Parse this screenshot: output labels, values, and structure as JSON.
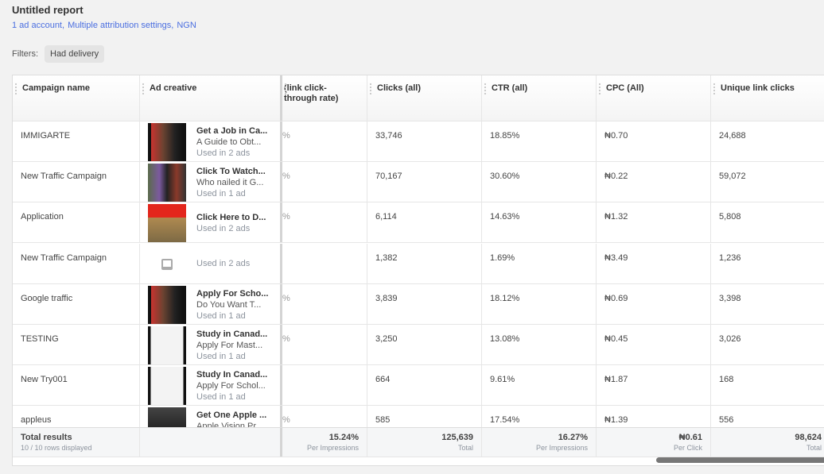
{
  "report": {
    "title": "Untitled report",
    "meta": [
      "1 ad account,",
      "Multiple attribution settings,",
      "NGN"
    ],
    "filters_label": "Filters:",
    "filter_chip": "Had delivery"
  },
  "columns": [
    "Campaign name",
    "Ad creative",
    "(link click-\nthrough rate)",
    "Clicks (all)",
    "CTR (all)",
    "CPC (All)",
    "Unique link clicks"
  ],
  "rows": [
    {
      "campaign": "IMMIGARTE",
      "headline": "Get a Job in Ca...",
      "desc": "A Guide to Obt...",
      "used": "Used in 2 ads",
      "thumb": "person",
      "partial": "%",
      "clicks": "33,746",
      "ctr": "18.85%",
      "cpc": "₦0.70",
      "unique": "24,688"
    },
    {
      "campaign": "New Traffic Campaign",
      "headline": "Click To Watch...",
      "desc": "Who nailed it G...",
      "used": "Used in 1 ad",
      "thumb": "crowd",
      "partial": "%",
      "clicks": "70,167",
      "ctr": "30.60%",
      "cpc": "₦0.22",
      "unique": "59,072"
    },
    {
      "campaign": "Application",
      "headline": "Click Here to D...",
      "desc": "",
      "used": "Used in 2 ads",
      "thumb": "music",
      "partial": "%",
      "clicks": "6,114",
      "ctr": "14.63%",
      "cpc": "₦1.32",
      "unique": "5,808"
    },
    {
      "campaign": "New Traffic Campaign",
      "headline": "",
      "desc": "",
      "used": "Used in 2 ads",
      "thumb": "placeholder",
      "partial": "",
      "clicks": "1,382",
      "ctr": "1.69%",
      "cpc": "₦3.49",
      "unique": "1,236"
    },
    {
      "campaign": "Google traffic",
      "headline": "Apply For Scho...",
      "desc": "Do You Want T...",
      "used": "Used in 1 ad",
      "thumb": "person",
      "partial": "%",
      "clicks": "3,839",
      "ctr": "18.12%",
      "cpc": "₦0.69",
      "unique": "3,398"
    },
    {
      "campaign": "TESTING",
      "headline": "Study in Canad...",
      "desc": "Apply For Mast...",
      "used": "Used in 1 ad",
      "thumb": "doc",
      "partial": "%",
      "clicks": "3,250",
      "ctr": "13.08%",
      "cpc": "₦0.45",
      "unique": "3,026"
    },
    {
      "campaign": "New Try001",
      "headline": "Study In Canad...",
      "desc": "Apply For Schol...",
      "used": "Used in 1 ad",
      "thumb": "doc",
      "partial": "",
      "clicks": "664",
      "ctr": "9.61%",
      "cpc": "₦1.87",
      "unique": "168"
    },
    {
      "campaign": "appleus",
      "headline": "Get One Apple ...",
      "desc": "Apple Vision Pr...",
      "used": "",
      "thumb": "vr",
      "partial": "%",
      "clicks": "585",
      "ctr": "17.54%",
      "cpc": "₦1.39",
      "unique": "556"
    }
  ],
  "totals": {
    "label": "Total results",
    "sub": "10 / 10 rows displayed",
    "partial": {
      "v": "15.24%",
      "l": "Per Impressions"
    },
    "clicks": {
      "v": "125,639",
      "l": "Total"
    },
    "ctr": {
      "v": "16.27%",
      "l": "Per Impressions"
    },
    "cpc": {
      "v": "₦0.61",
      "l": "Per Click"
    },
    "unique": {
      "v": "98,624",
      "l": "Total"
    }
  }
}
